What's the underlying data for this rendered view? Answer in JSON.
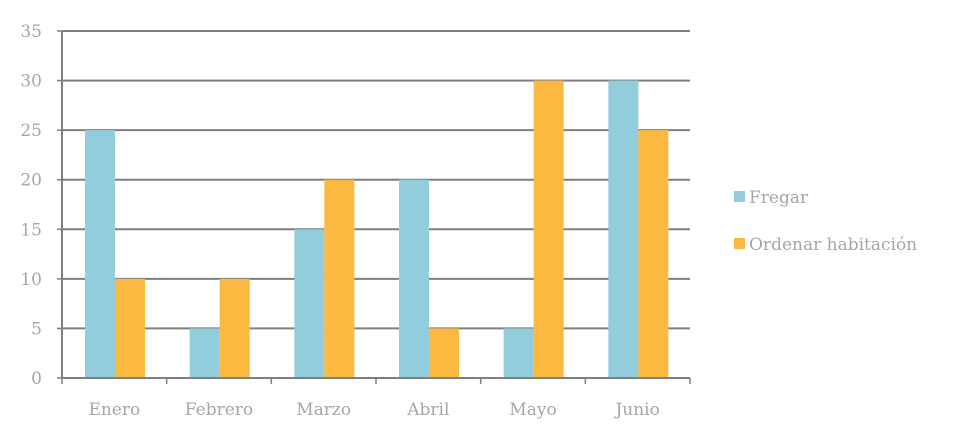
{
  "chart_data": {
    "type": "bar",
    "title": "",
    "xlabel": "",
    "ylabel": "",
    "categories": [
      "Enero",
      "Febrero",
      "Marzo",
      "Abril",
      "Mayo",
      "Junio"
    ],
    "series": [
      {
        "name": "Fregar",
        "values": [
          25,
          5,
          15,
          20,
          5,
          30
        ],
        "color": "#92cddc"
      },
      {
        "name": "Ordenar habitación",
        "values": [
          10,
          10,
          20,
          5,
          30,
          25
        ],
        "color": "#fbb942"
      }
    ],
    "ylim": [
      0,
      35
    ],
    "yticks": [
      0,
      5,
      10,
      15,
      20,
      25,
      30,
      35
    ],
    "grid": true,
    "legend_position": "right",
    "colors": {
      "grid": "#7f7f7f",
      "axis": "#7f7f7f",
      "text": "#a6a6a6"
    }
  }
}
